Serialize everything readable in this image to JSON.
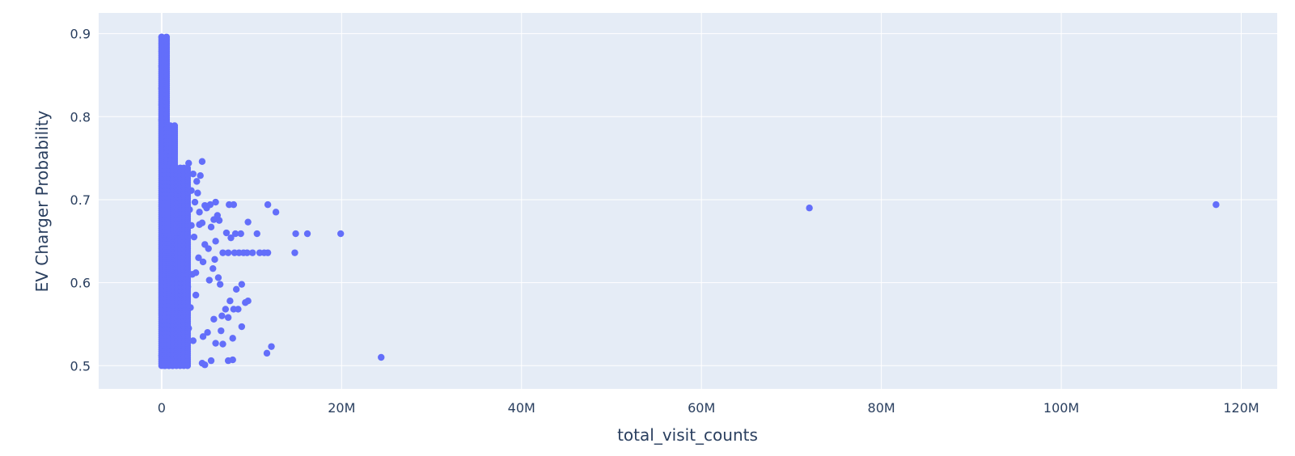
{
  "chart_data": {
    "type": "scatter",
    "xlabel": "total_visit_counts",
    "ylabel": "EV Charger Probability",
    "xlim": [
      -7000000,
      124000000
    ],
    "ylim": [
      0.472,
      0.925
    ],
    "grid": true,
    "x_ticks": [
      {
        "value": 0,
        "label": "0"
      },
      {
        "value": 20000000,
        "label": "20M"
      },
      {
        "value": 40000000,
        "label": "40M"
      },
      {
        "value": 60000000,
        "label": "60M"
      },
      {
        "value": 80000000,
        "label": "80M"
      },
      {
        "value": 100000000,
        "label": "100M"
      },
      {
        "value": 120000000,
        "label": "120M"
      }
    ],
    "y_ticks": [
      {
        "value": 0.5,
        "label": "0.5"
      },
      {
        "value": 0.6,
        "label": "0.6"
      },
      {
        "value": 0.7,
        "label": "0.7"
      },
      {
        "value": 0.8,
        "label": "0.8"
      },
      {
        "value": 0.9,
        "label": "0.9"
      }
    ],
    "marker_color": "#636efa",
    "background_color": "#e5ecf6",
    "points": [
      [
        0,
        0.896
      ],
      [
        50000,
        0.893
      ],
      [
        20000,
        0.888
      ],
      [
        80000,
        0.884
      ],
      [
        10000,
        0.879
      ],
      [
        100000,
        0.875
      ],
      [
        30000,
        0.87
      ],
      [
        60000,
        0.866
      ],
      [
        0,
        0.861
      ],
      [
        90000,
        0.857
      ],
      [
        20000,
        0.852
      ],
      [
        70000,
        0.848
      ],
      [
        40000,
        0.843
      ],
      [
        110000,
        0.838
      ],
      [
        0,
        0.834
      ],
      [
        60000,
        0.829
      ],
      [
        30000,
        0.824
      ],
      [
        120000,
        0.819
      ],
      [
        10000,
        0.814
      ],
      [
        80000,
        0.809
      ],
      [
        150000,
        0.805
      ],
      [
        50000,
        0.8
      ],
      [
        0,
        0.796
      ],
      [
        180000,
        0.792
      ],
      [
        250000,
        0.788
      ],
      [
        900000,
        0.788
      ],
      [
        400000,
        0.783
      ],
      [
        700000,
        0.779
      ],
      [
        200000,
        0.775
      ],
      [
        1000000,
        0.772
      ],
      [
        500000,
        0.768
      ],
      [
        800000,
        0.765
      ],
      [
        300000,
        0.761
      ],
      [
        1100000,
        0.758
      ],
      [
        600000,
        0.755
      ],
      [
        200000,
        0.751
      ],
      [
        900000,
        0.748
      ],
      [
        1400000,
        0.745
      ],
      [
        400000,
        0.742
      ],
      [
        700000,
        0.738
      ],
      [
        3000000,
        0.744
      ],
      [
        4500000,
        0.746
      ],
      [
        1200000,
        0.735
      ],
      [
        2800000,
        0.732
      ],
      [
        3500000,
        0.731
      ],
      [
        4300000,
        0.729
      ],
      [
        1800000,
        0.727
      ],
      [
        3900000,
        0.722
      ],
      [
        2600000,
        0.712
      ],
      [
        3300000,
        0.711
      ],
      [
        4000000,
        0.708
      ],
      [
        1600000,
        0.705
      ],
      [
        2200000,
        0.7
      ],
      [
        3700000,
        0.697
      ],
      [
        4800000,
        0.693
      ],
      [
        5400000,
        0.694
      ],
      [
        6000000,
        0.697
      ],
      [
        7500000,
        0.694
      ],
      [
        8000000,
        0.694
      ],
      [
        11800000,
        0.694
      ],
      [
        12700000,
        0.685
      ],
      [
        5000000,
        0.69
      ],
      [
        4200000,
        0.685
      ],
      [
        6200000,
        0.681
      ],
      [
        5800000,
        0.676
      ],
      [
        6400000,
        0.675
      ],
      [
        4500000,
        0.672
      ],
      [
        9600000,
        0.673
      ],
      [
        3300000,
        0.669
      ],
      [
        5500000,
        0.667
      ],
      [
        7200000,
        0.66
      ],
      [
        8200000,
        0.659
      ],
      [
        8800000,
        0.659
      ],
      [
        10600000,
        0.659
      ],
      [
        14900000,
        0.659
      ],
      [
        16200000,
        0.659
      ],
      [
        19900000,
        0.659
      ],
      [
        7700000,
        0.654
      ],
      [
        6000000,
        0.65
      ],
      [
        4800000,
        0.646
      ],
      [
        5200000,
        0.641
      ],
      [
        6800000,
        0.636
      ],
      [
        7400000,
        0.636
      ],
      [
        8100000,
        0.636
      ],
      [
        8600000,
        0.636
      ],
      [
        9100000,
        0.636
      ],
      [
        9500000,
        0.636
      ],
      [
        10100000,
        0.636
      ],
      [
        10900000,
        0.636
      ],
      [
        11400000,
        0.636
      ],
      [
        11800000,
        0.636
      ],
      [
        14800000,
        0.636
      ],
      [
        5900000,
        0.628
      ],
      [
        4600000,
        0.625
      ],
      [
        5700000,
        0.617
      ],
      [
        3800000,
        0.612
      ],
      [
        6300000,
        0.606
      ],
      [
        5300000,
        0.603
      ],
      [
        8900000,
        0.598
      ],
      [
        6500000,
        0.598
      ],
      [
        8300000,
        0.592
      ],
      [
        9600000,
        0.578
      ],
      [
        9300000,
        0.576
      ],
      [
        7600000,
        0.578
      ],
      [
        7100000,
        0.568
      ],
      [
        8000000,
        0.568
      ],
      [
        8500000,
        0.568
      ],
      [
        6700000,
        0.56
      ],
      [
        7400000,
        0.558
      ],
      [
        5800000,
        0.556
      ],
      [
        8900000,
        0.547
      ],
      [
        6600000,
        0.542
      ],
      [
        5100000,
        0.54
      ],
      [
        7900000,
        0.533
      ],
      [
        4600000,
        0.535
      ],
      [
        6000000,
        0.527
      ],
      [
        6800000,
        0.526
      ],
      [
        12200000,
        0.523
      ],
      [
        11700000,
        0.515
      ],
      [
        7900000,
        0.507
      ],
      [
        7400000,
        0.506
      ],
      [
        5500000,
        0.506
      ],
      [
        4500000,
        0.503
      ],
      [
        24400000,
        0.51
      ],
      [
        4800000,
        0.501
      ],
      [
        2400000,
        0.501
      ],
      [
        1600000,
        0.502
      ],
      [
        800000,
        0.5
      ],
      [
        300000,
        0.5
      ],
      [
        1200000,
        0.5
      ],
      [
        0,
        0.512
      ],
      [
        500000,
        0.518
      ],
      [
        1500000,
        0.522
      ],
      [
        2500000,
        0.525
      ],
      [
        3500000,
        0.53
      ],
      [
        900000,
        0.535
      ],
      [
        2000000,
        0.54
      ],
      [
        3000000,
        0.545
      ],
      [
        1300000,
        0.55
      ],
      [
        2600000,
        0.555
      ],
      [
        400000,
        0.56
      ],
      [
        1800000,
        0.565
      ],
      [
        3200000,
        0.57
      ],
      [
        700000,
        0.575
      ],
      [
        2200000,
        0.58
      ],
      [
        3800000,
        0.585
      ],
      [
        1100000,
        0.59
      ],
      [
        2900000,
        0.595
      ],
      [
        500000,
        0.6
      ],
      [
        1700000,
        0.605
      ],
      [
        3400000,
        0.61
      ],
      [
        900000,
        0.615
      ],
      [
        2400000,
        0.62
      ],
      [
        4100000,
        0.63
      ],
      [
        1400000,
        0.635
      ],
      [
        2800000,
        0.64
      ],
      [
        600000,
        0.645
      ],
      [
        2000000,
        0.65
      ],
      [
        3600000,
        0.655
      ],
      [
        1000000,
        0.66
      ],
      [
        2300000,
        0.665
      ],
      [
        4200000,
        0.67
      ],
      [
        800000,
        0.675
      ],
      [
        1900000,
        0.68
      ],
      [
        3100000,
        0.688
      ],
      [
        1300000,
        0.692
      ],
      [
        2500000,
        0.698
      ],
      [
        700000,
        0.702
      ],
      [
        1700000,
        0.71
      ],
      [
        2700000,
        0.718
      ],
      [
        1100000,
        0.725
      ],
      [
        2100000,
        0.738
      ],
      [
        72000000,
        0.69
      ],
      [
        117200000,
        0.694
      ]
    ]
  }
}
